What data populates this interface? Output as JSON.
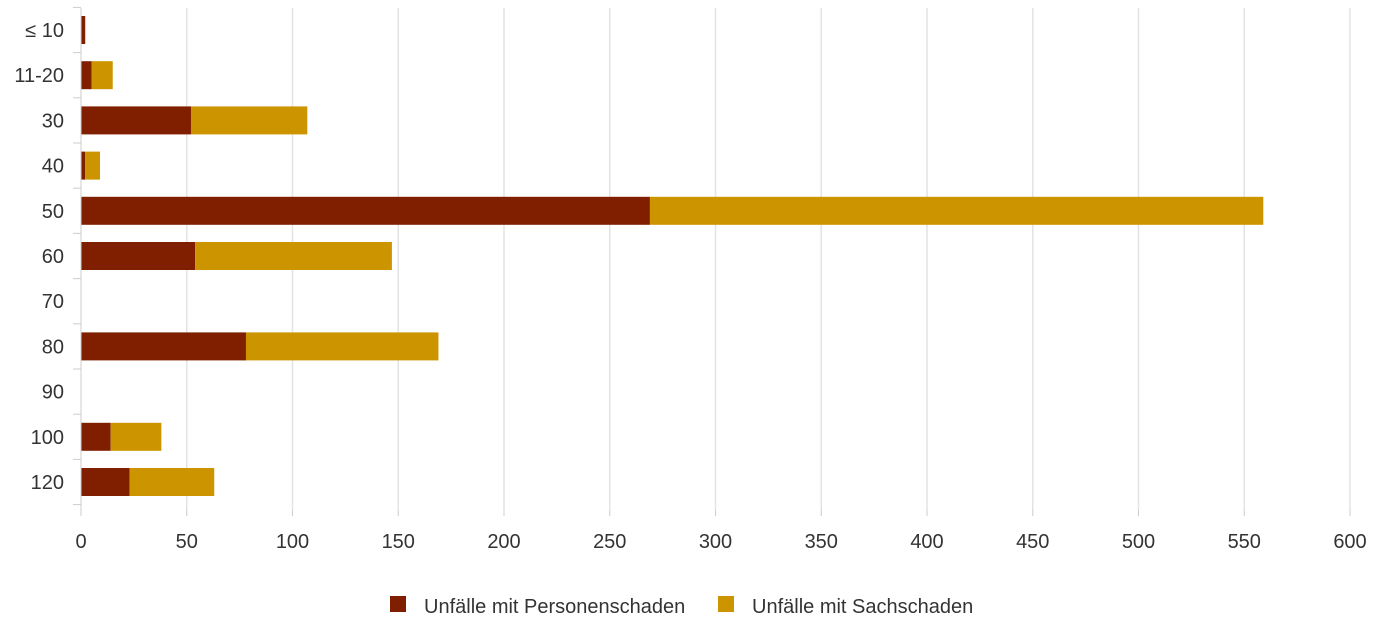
{
  "chart_data": {
    "type": "bar",
    "orientation": "horizontal",
    "stacked": true,
    "categories": [
      "≤ 10",
      "11-20",
      "30",
      "40",
      "50",
      "60",
      "70",
      "80",
      "90",
      "100",
      "120"
    ],
    "series": [
      {
        "name": "Unfälle mit Personenschaden",
        "color": "#7f1f00",
        "values": [
          2,
          5,
          52,
          2,
          269,
          54,
          0,
          78,
          0,
          14,
          23
        ]
      },
      {
        "name": "Unfälle mit Sachschaden",
        "color": "#cc9500",
        "values": [
          0,
          10,
          55,
          7,
          290,
          93,
          0,
          91,
          0,
          24,
          40
        ]
      }
    ],
    "xlim": [
      0,
      600
    ],
    "xticks": [
      "0",
      "50",
      "100",
      "150",
      "200",
      "250",
      "300",
      "350",
      "400",
      "450",
      "500",
      "550",
      "600"
    ],
    "grid": true,
    "legend_position": "bottom"
  }
}
